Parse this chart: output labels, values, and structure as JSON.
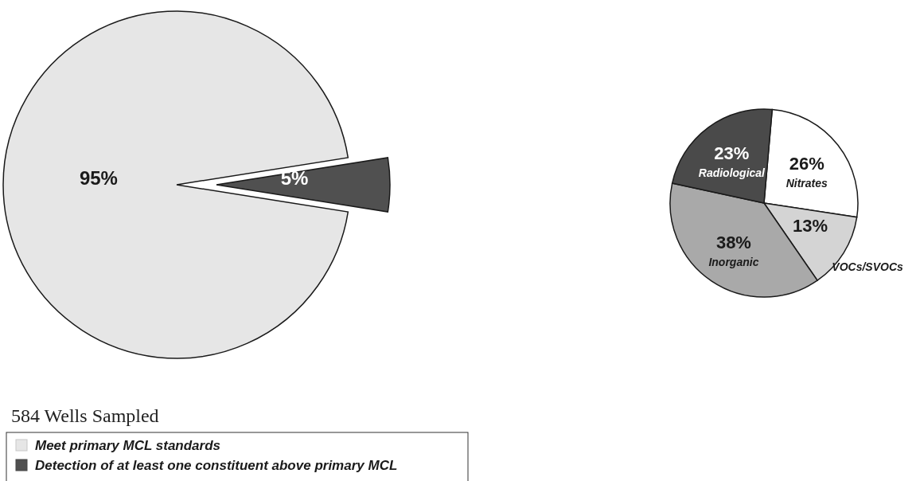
{
  "chart_data": [
    {
      "type": "pie",
      "categories": [
        "Meet primary MCL standards",
        "Detection of at least one constituent above primary MCL"
      ],
      "values": [
        95,
        5
      ],
      "colors": [
        "#e6e6e6",
        "#505050"
      ],
      "value_labels": [
        "95%",
        "5%"
      ],
      "legend": "bottom left",
      "legend_title": "584 Wells Sampled"
    },
    {
      "type": "pie",
      "categories": [
        "Nitrates",
        "VOCs/SVOCs",
        "Inorganic",
        "Radiological"
      ],
      "values": [
        26,
        13,
        38,
        23
      ],
      "colors": [
        "#ffffff",
        "#d4d4d4",
        "#a9a9a9",
        "#4a4a4a"
      ],
      "value_labels": [
        "26%",
        "13%",
        "38%",
        "23%"
      ]
    }
  ]
}
